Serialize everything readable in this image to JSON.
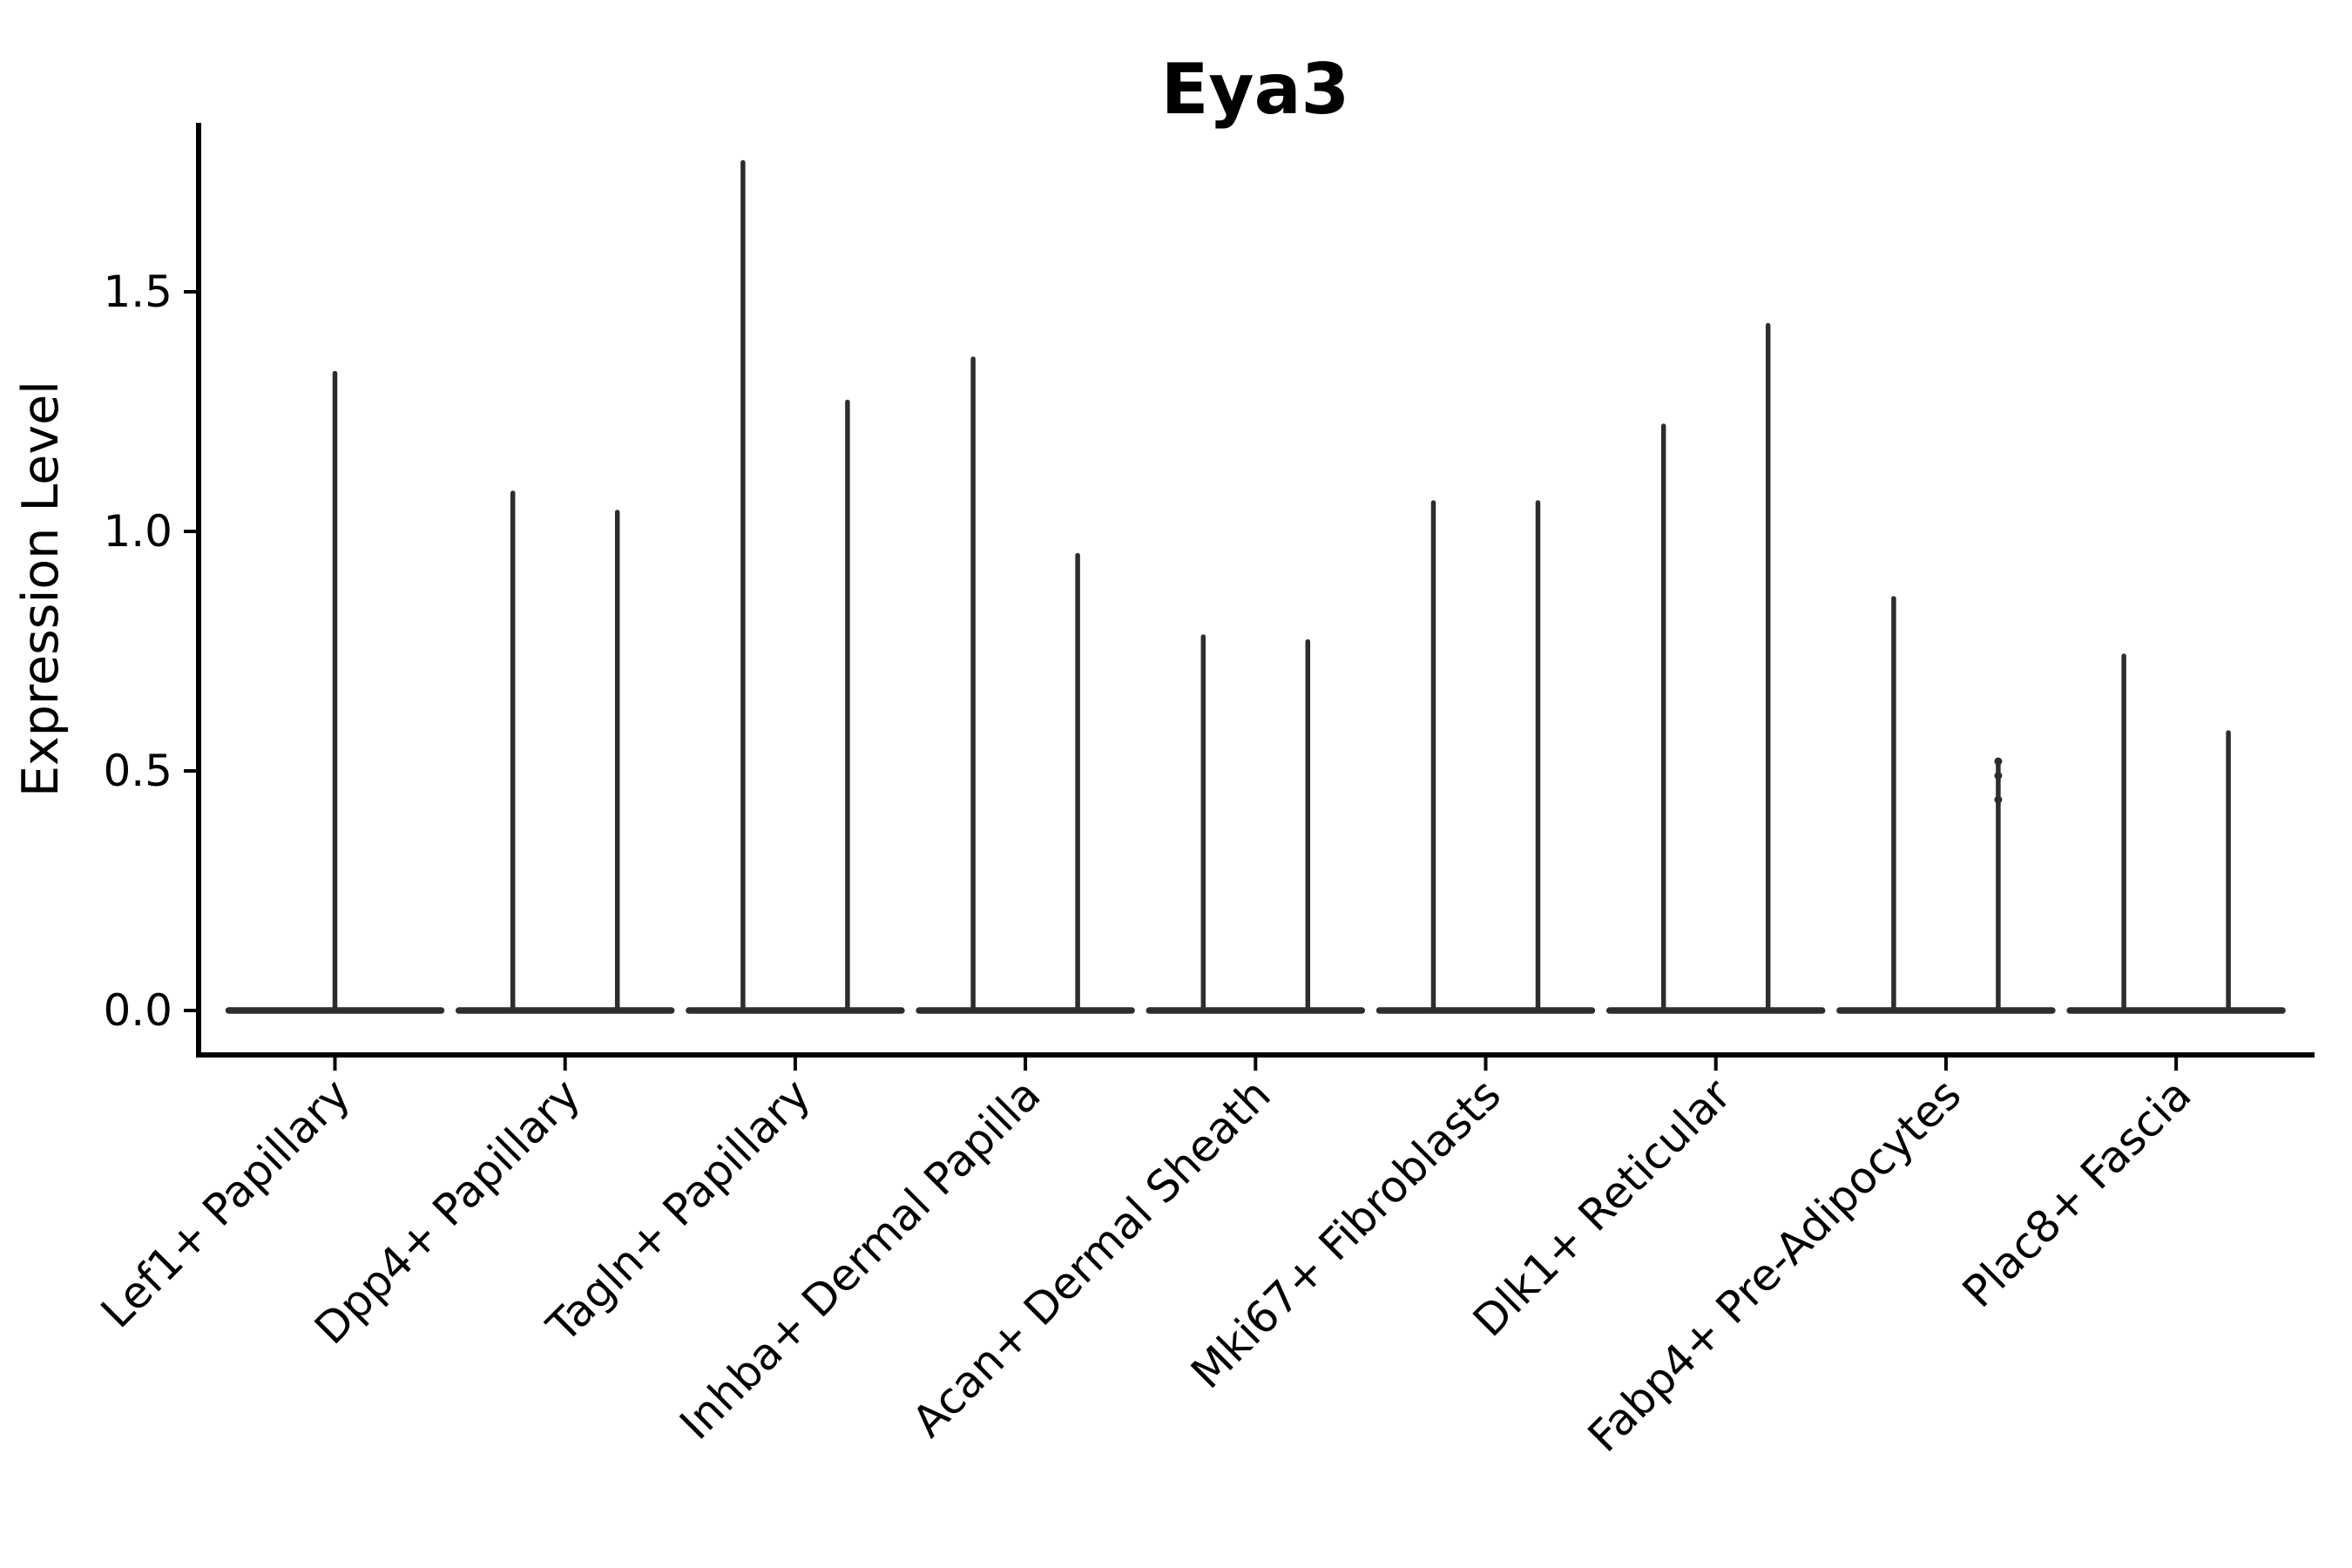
{
  "chart_data": {
    "type": "violin",
    "title": "Eya3",
    "ylabel": "Expression Level",
    "xlabel": "",
    "yticks": [
      0.0,
      0.5,
      1.0,
      1.5
    ],
    "ytick_labels": [
      "0.0",
      "0.5",
      "1.0",
      "1.5"
    ],
    "ylim": [
      -0.09,
      1.85
    ],
    "grid": false,
    "legend_position": "none",
    "categories": [
      "Lef1+ Papillary",
      "Dpp4+ Papillary",
      "Tagln+ Papillary",
      "Inhba+ Dermal Papilla",
      "Acan+ Dermal Sheath",
      "Mki67+ Fibroblasts",
      "Dlk1+ Reticular",
      "Fabp4+ Pre-Adipocytes",
      "Plac8+ Fascia"
    ],
    "series": [
      {
        "category": "Lef1+ Papillary",
        "violin_max": [
          1.33
        ],
        "note": "single centered violin, all mass at 0 with thin spike"
      },
      {
        "category": "Dpp4+ Papillary",
        "violin_max": [
          1.08,
          1.04
        ]
      },
      {
        "category": "Tagln+ Papillary",
        "violin_max": [
          1.77,
          1.27
        ]
      },
      {
        "category": "Inhba+ Dermal Papilla",
        "violin_max": [
          1.36,
          0.95
        ]
      },
      {
        "category": "Acan+ Dermal Sheath",
        "violin_max": [
          0.78,
          0.77
        ]
      },
      {
        "category": "Mki67+ Fibroblasts",
        "violin_max": [
          1.06,
          1.06
        ]
      },
      {
        "category": "Dlk1+ Reticular",
        "violin_max": [
          1.22,
          1.43
        ]
      },
      {
        "category": "Fabp4+ Pre-Adipocytes",
        "violin_max": [
          0.86,
          0.52
        ],
        "jitter_points": [
          [],
          [
            0.52,
            0.49,
            0.44
          ]
        ]
      },
      {
        "category": "Plac8+ Fascia",
        "violin_max": [
          0.74,
          0.58
        ]
      }
    ],
    "colors": {
      "violin": "#2d2d2d",
      "axis": "#000000",
      "text": "#000000",
      "background": "#ffffff"
    }
  }
}
